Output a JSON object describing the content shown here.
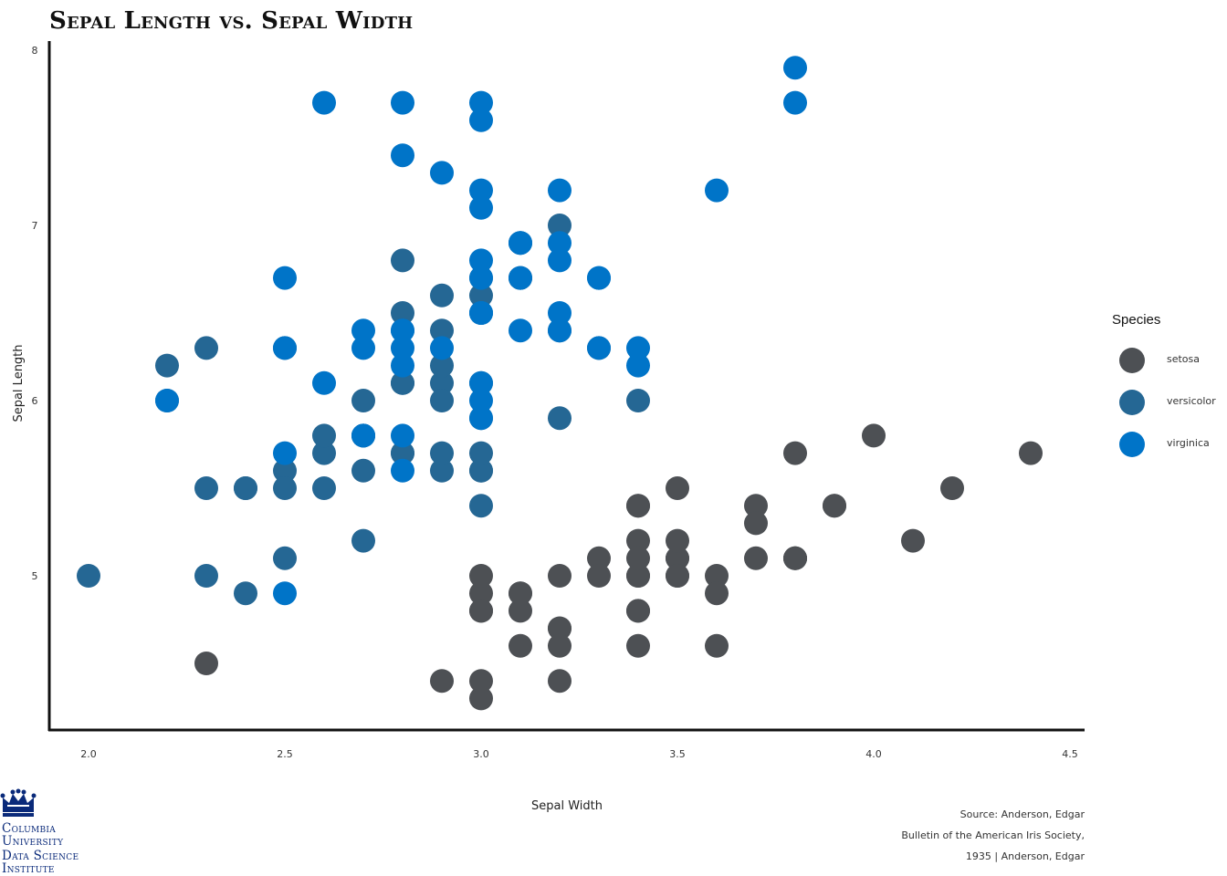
{
  "chart_data": {
    "type": "scatter",
    "title": "Sepal Length vs. Sepal Width",
    "xlabel": "Sepal Width",
    "ylabel": "Sepal Length",
    "xlim": [
      1.9,
      4.55
    ],
    "ylim": [
      4.15,
      8.05
    ],
    "x_ticks": [
      "2.0",
      "2.5",
      "3.0",
      "3.5",
      "4.0",
      "4.5"
    ],
    "y_ticks": [
      "5",
      "6",
      "7",
      "8"
    ],
    "grid": false,
    "legend_title": "Species",
    "legend_position": "right",
    "series": [
      {
        "name": "setosa",
        "color": "#4d5054",
        "points": [
          [
            3.5,
            5.1
          ],
          [
            3.0,
            4.9
          ],
          [
            3.2,
            4.7
          ],
          [
            3.1,
            4.6
          ],
          [
            3.6,
            5.0
          ],
          [
            3.9,
            5.4
          ],
          [
            3.4,
            4.6
          ],
          [
            3.4,
            5.0
          ],
          [
            2.9,
            4.4
          ],
          [
            3.1,
            4.9
          ],
          [
            3.7,
            5.4
          ],
          [
            3.4,
            4.8
          ],
          [
            3.0,
            4.8
          ],
          [
            3.0,
            4.3
          ],
          [
            4.0,
            5.8
          ],
          [
            4.4,
            5.7
          ],
          [
            3.9,
            5.4
          ],
          [
            3.5,
            5.1
          ],
          [
            3.8,
            5.7
          ],
          [
            3.8,
            5.1
          ],
          [
            3.4,
            5.4
          ],
          [
            3.7,
            5.1
          ],
          [
            3.6,
            4.6
          ],
          [
            3.3,
            5.1
          ],
          [
            3.4,
            4.8
          ],
          [
            3.0,
            5.0
          ],
          [
            3.4,
            5.0
          ],
          [
            3.5,
            5.2
          ],
          [
            3.4,
            5.2
          ],
          [
            3.2,
            4.7
          ],
          [
            3.1,
            4.8
          ],
          [
            3.4,
            5.4
          ],
          [
            4.1,
            5.2
          ],
          [
            4.2,
            5.5
          ],
          [
            3.1,
            4.9
          ],
          [
            3.2,
            5.0
          ],
          [
            3.5,
            5.5
          ],
          [
            3.6,
            4.9
          ],
          [
            3.0,
            4.4
          ],
          [
            3.4,
            5.1
          ],
          [
            3.5,
            5.0
          ],
          [
            2.3,
            4.5
          ],
          [
            3.2,
            4.4
          ],
          [
            3.5,
            5.0
          ],
          [
            3.8,
            5.1
          ],
          [
            3.0,
            4.8
          ],
          [
            3.8,
            5.1
          ],
          [
            3.2,
            4.6
          ],
          [
            3.7,
            5.3
          ],
          [
            3.3,
            5.0
          ]
        ]
      },
      {
        "name": "versicolor",
        "color": "#256794",
        "points": [
          [
            3.2,
            7.0
          ],
          [
            3.2,
            6.4
          ],
          [
            3.1,
            6.9
          ],
          [
            2.3,
            5.5
          ],
          [
            2.8,
            6.5
          ],
          [
            2.8,
            5.7
          ],
          [
            3.3,
            6.3
          ],
          [
            2.4,
            4.9
          ],
          [
            2.9,
            6.6
          ],
          [
            2.7,
            5.2
          ],
          [
            2.0,
            5.0
          ],
          [
            3.0,
            5.9
          ],
          [
            2.2,
            6.0
          ],
          [
            2.9,
            6.1
          ],
          [
            2.9,
            5.6
          ],
          [
            3.1,
            6.7
          ],
          [
            3.0,
            5.6
          ],
          [
            2.7,
            5.8
          ],
          [
            2.2,
            6.2
          ],
          [
            2.5,
            5.6
          ],
          [
            3.2,
            5.9
          ],
          [
            2.8,
            6.1
          ],
          [
            2.5,
            6.3
          ],
          [
            2.8,
            6.1
          ],
          [
            2.9,
            6.4
          ],
          [
            3.0,
            6.6
          ],
          [
            2.8,
            6.8
          ],
          [
            3.0,
            6.7
          ],
          [
            2.9,
            6.0
          ],
          [
            2.6,
            5.7
          ],
          [
            2.4,
            5.5
          ],
          [
            2.4,
            5.5
          ],
          [
            2.7,
            5.8
          ],
          [
            2.7,
            6.0
          ],
          [
            3.0,
            5.4
          ],
          [
            3.4,
            6.0
          ],
          [
            3.1,
            6.7
          ],
          [
            2.3,
            6.3
          ],
          [
            3.0,
            5.6
          ],
          [
            2.5,
            5.5
          ],
          [
            2.6,
            5.5
          ],
          [
            3.0,
            6.1
          ],
          [
            2.6,
            5.8
          ],
          [
            2.3,
            5.0
          ],
          [
            2.7,
            5.6
          ],
          [
            3.0,
            5.7
          ],
          [
            2.9,
            5.7
          ],
          [
            2.9,
            6.2
          ],
          [
            2.5,
            5.1
          ],
          [
            2.8,
            5.7
          ]
        ]
      },
      {
        "name": "virginica",
        "color": "#0074c8",
        "points": [
          [
            3.3,
            6.3
          ],
          [
            2.7,
            5.8
          ],
          [
            3.0,
            7.1
          ],
          [
            2.9,
            6.3
          ],
          [
            3.0,
            6.5
          ],
          [
            3.0,
            7.6
          ],
          [
            2.5,
            4.9
          ],
          [
            2.9,
            7.3
          ],
          [
            2.5,
            6.7
          ],
          [
            3.6,
            7.2
          ],
          [
            3.2,
            6.5
          ],
          [
            2.7,
            6.4
          ],
          [
            3.0,
            6.8
          ],
          [
            2.5,
            5.7
          ],
          [
            2.8,
            5.8
          ],
          [
            3.2,
            6.4
          ],
          [
            3.0,
            6.5
          ],
          [
            3.8,
            7.7
          ],
          [
            2.6,
            7.7
          ],
          [
            2.2,
            6.0
          ],
          [
            3.2,
            6.9
          ],
          [
            2.8,
            5.6
          ],
          [
            2.8,
            7.7
          ],
          [
            2.7,
            6.3
          ],
          [
            3.3,
            6.7
          ],
          [
            3.2,
            7.2
          ],
          [
            2.8,
            6.2
          ],
          [
            3.0,
            6.1
          ],
          [
            2.8,
            6.4
          ],
          [
            3.0,
            7.2
          ],
          [
            2.8,
            7.4
          ],
          [
            3.8,
            7.9
          ],
          [
            2.8,
            6.4
          ],
          [
            2.8,
            6.3
          ],
          [
            2.6,
            6.1
          ],
          [
            3.0,
            7.7
          ],
          [
            3.4,
            6.3
          ],
          [
            3.1,
            6.4
          ],
          [
            3.0,
            6.0
          ],
          [
            3.1,
            6.9
          ],
          [
            3.1,
            6.7
          ],
          [
            3.1,
            6.9
          ],
          [
            2.7,
            5.8
          ],
          [
            3.2,
            6.8
          ],
          [
            3.3,
            6.7
          ],
          [
            3.0,
            6.7
          ],
          [
            2.5,
            6.3
          ],
          [
            3.0,
            6.5
          ],
          [
            3.4,
            6.2
          ],
          [
            3.0,
            5.9
          ]
        ]
      }
    ]
  },
  "source": {
    "line1": "Source: Anderson, Edgar",
    "line2": "Bulletin of the American Iris Society,",
    "line3": "1935 | Anderson, Edgar"
  },
  "logo": {
    "line1": "Columbia",
    "line2": "University",
    "line3": "Data Science",
    "line4": "Institute"
  }
}
